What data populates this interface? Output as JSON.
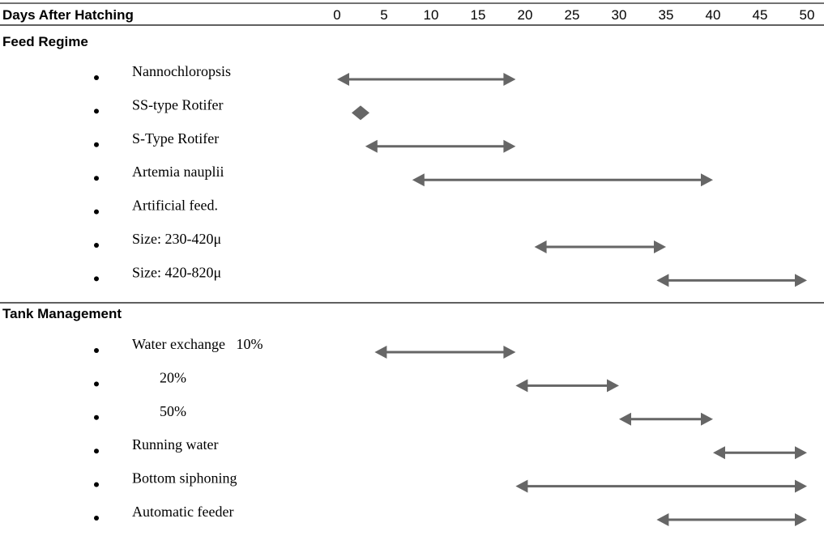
{
  "chart_data": {
    "type": "gantt",
    "x_header": "Days After Hatching",
    "ticks": [
      0,
      5,
      10,
      15,
      20,
      25,
      30,
      35,
      40,
      45,
      50
    ],
    "sections": [
      {
        "title": "Feed Regime",
        "rows": [
          {
            "label": "Nannochloropsis",
            "start": 0,
            "end": 19
          },
          {
            "label": "SS-type Rotifer",
            "start": 1.5,
            "end": 3.5
          },
          {
            "label": "S-Type Rotifer",
            "start": 3,
            "end": 19
          },
          {
            "label": "Artemia nauplii",
            "start": 8,
            "end": 40
          },
          {
            "label": "Artificial feed.",
            "start": null,
            "end": null
          },
          {
            "label": "Size: 230-420μ",
            "start": 21,
            "end": 35
          },
          {
            "label": "Size: 420-820μ",
            "start": 34,
            "end": 50
          }
        ]
      },
      {
        "title": "Tank Management",
        "rows": [
          {
            "label": "Water exchange   10%",
            "start": 4,
            "end": 19
          },
          {
            "label": "20%",
            "start": 19,
            "end": 30
          },
          {
            "label": "50%",
            "start": 30,
            "end": 40
          },
          {
            "label": "Running water",
            "start": 40,
            "end": 50
          },
          {
            "label": "Bottom siphoning",
            "start": 19,
            "end": 50
          },
          {
            "label": "Automatic feeder",
            "start": 34,
            "end": 50
          }
        ]
      }
    ]
  }
}
